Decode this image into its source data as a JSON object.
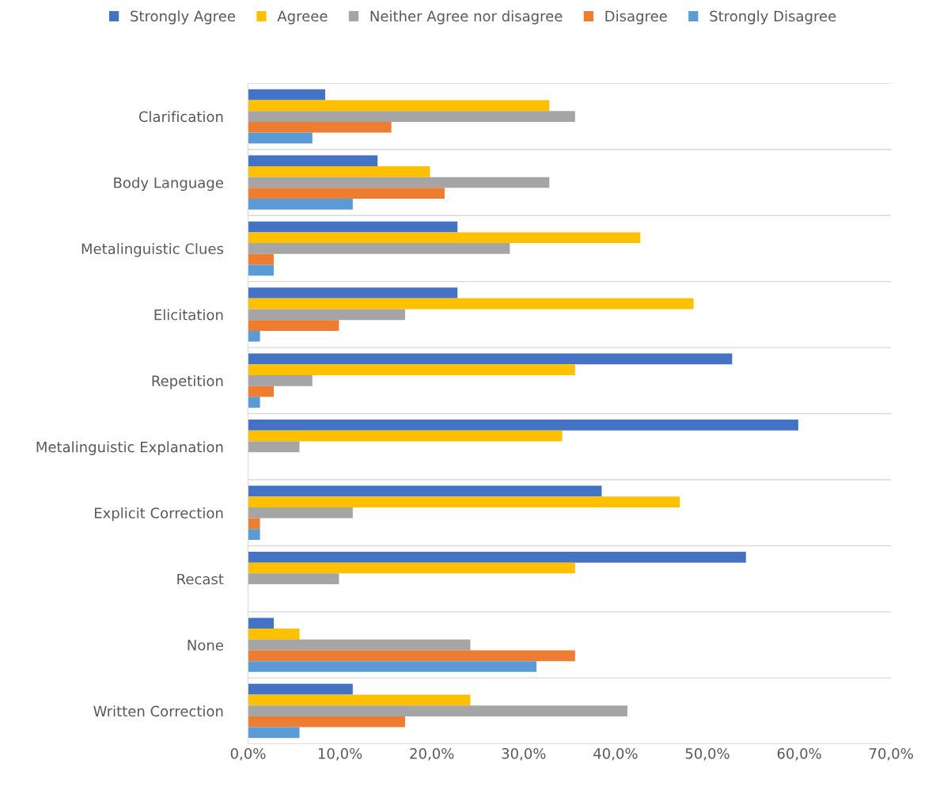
{
  "chart_data": {
    "type": "bar",
    "orientation": "horizontal",
    "categories": [
      "Clarification",
      "Body Language",
      "Metalinguistic Clues",
      "Elicitation",
      "Repetition",
      "Metalinguistic Explanation",
      "Explicit Correction",
      "Recast",
      "None",
      "Written Correction"
    ],
    "series": [
      {
        "name": "Strongly Agree",
        "color": "#4472c4",
        "values": [
          8.4,
          14.1,
          22.8,
          22.8,
          52.7,
          59.9,
          38.5,
          54.2,
          2.8,
          11.4
        ]
      },
      {
        "name": "Agreee",
        "color": "#ffc000",
        "values": [
          32.8,
          19.8,
          42.7,
          48.5,
          35.6,
          34.2,
          47.0,
          35.6,
          5.6,
          24.2
        ]
      },
      {
        "name": "Neither Agree nor disagree",
        "color": "#a5a5a5",
        "values": [
          35.6,
          32.8,
          28.5,
          17.1,
          7.0,
          5.6,
          11.4,
          9.9,
          24.2,
          41.3
        ]
      },
      {
        "name": "Disagree",
        "color": "#ed7d31",
        "values": [
          15.6,
          21.4,
          2.8,
          9.9,
          2.8,
          0,
          1.3,
          0,
          35.6,
          17.1
        ]
      },
      {
        "name": "Strongly Disagree",
        "color": "#5b9bd5",
        "values": [
          7.0,
          11.4,
          2.8,
          1.3,
          1.3,
          0,
          1.3,
          0,
          31.4,
          5.6
        ]
      }
    ],
    "xlim": [
      0,
      70
    ],
    "xticks": [
      {
        "value": 0,
        "label": "0,0%"
      },
      {
        "value": 10,
        "label": "10,0%"
      },
      {
        "value": 20,
        "label": "20,0%"
      },
      {
        "value": 30,
        "label": "30,0%"
      },
      {
        "value": 40,
        "label": "40,0%"
      },
      {
        "value": 50,
        "label": "50,0%"
      },
      {
        "value": 60,
        "label": "60,0%"
      },
      {
        "value": 70,
        "label": "70,0%"
      }
    ],
    "grid": "y",
    "legend": "top"
  }
}
